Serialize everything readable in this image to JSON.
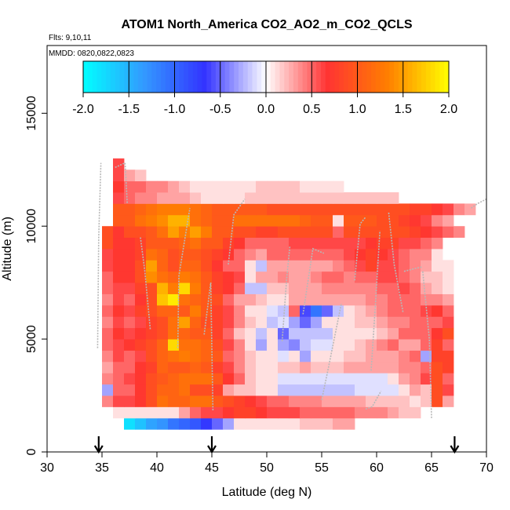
{
  "chart_data": {
    "type": "heatmap",
    "title": "ATOM1 North_America CO2_AO2_m_CO2_QCLS",
    "subtitle_flights": "Flts: 9,10,11",
    "subtitle_dates": "MMDD: 0820,0822,0823",
    "xlabel": "Latitude (deg N)",
    "ylabel": "Altitude (m)",
    "xlim": [
      30,
      70
    ],
    "ylim": [
      0,
      18000
    ],
    "xticks": [
      "30",
      "35",
      "40",
      "45",
      "50",
      "55",
      "60",
      "65",
      "70"
    ],
    "yticks": [
      "0",
      "5000",
      "10000",
      "15000"
    ],
    "colorbar": {
      "range": [
        -2.0,
        2.0
      ],
      "ticks": [
        "-2.0",
        "-1.5",
        "-1.0",
        "-0.5",
        "0.0",
        "0.5",
        "1.0",
        "1.5",
        "2.0"
      ],
      "colors": [
        "#00ffff",
        "#3399ff",
        "#3333ff",
        "#ffffff",
        "#ff3333",
        "#ff7f00",
        "#ffff00"
      ]
    },
    "arrows_latitude": [
      34.7,
      45.0,
      67.1
    ],
    "bin_width_lat": 1.0,
    "bin_height_alt": 500,
    "rows": [
      {
        "alt": 1250,
        "lat_start": 37,
        "values": [
          -1.8,
          -1.6,
          -1.4,
          -1.3,
          -1.1,
          -1.0,
          -0.9,
          -0.7,
          -0.5,
          -0.3,
          0.1,
          0.1,
          0.1,
          0.1,
          0.1,
          0.1,
          0.2,
          0.2,
          0.2,
          0.3,
          0.3
        ]
      },
      {
        "alt": 1750,
        "lat_start": 36,
        "values": [
          0.1,
          0.1,
          0.1,
          0.1,
          0.1,
          0.1,
          0.3,
          0.5,
          0.6,
          0.6,
          0.7,
          0.8,
          0.8,
          0.7,
          0.6,
          0.6,
          0.6,
          0.5,
          0.5,
          0.5,
          0.5,
          0.5,
          0.4,
          0.4,
          0.4,
          0.3,
          0.2,
          0.2
        ]
      },
      {
        "alt": 2250,
        "lat_start": 35,
        "values": [
          0.4,
          0.6,
          0.6,
          0.7,
          0.9,
          1.2,
          1.1,
          1.1,
          1.2,
          1.2,
          1.0,
          0.9,
          0.8,
          0.7,
          0.6,
          0.5,
          0.5,
          0.4,
          0.4,
          0.4,
          0.3,
          0.3,
          0.3,
          0.3,
          0.2,
          0.2,
          0.2,
          0.2,
          0.1,
          0.2,
          0.9,
          0.3
        ]
      },
      {
        "alt": 2750,
        "lat_start": 35,
        "values": [
          -0.3,
          0.5,
          0.5,
          0.7,
          0.9,
          1.1,
          1.1,
          1.2,
          0.9,
          0.9,
          0.8,
          0.3,
          0.2,
          0.2,
          0.1,
          0.1,
          -0.2,
          -0.2,
          -0.2,
          -0.2,
          -0.2,
          -0.2,
          -0.2,
          -0.1,
          -0.1,
          -0.1,
          -0.1,
          0.1,
          0.3,
          0.2,
          0.9,
          0.6
        ]
      },
      {
        "alt": 3250,
        "lat_start": 35,
        "values": [
          0.4,
          0.5,
          0.6,
          0.7,
          0.9,
          1.0,
          1.1,
          1.2,
          1.2,
          1.2,
          1.0,
          0.7,
          0.5,
          0.2,
          0.1,
          0.1,
          -0.1,
          -0.1,
          -0.1,
          -0.1,
          -0.1,
          -0.1,
          -0.1,
          -0.1,
          -0.1,
          -0.1,
          0.1,
          0.3,
          0.4,
          0.6,
          0.9,
          0.5
        ]
      },
      {
        "alt": 3750,
        "lat_start": 35,
        "values": [
          0.3,
          0.5,
          0.5,
          0.7,
          0.8,
          1.1,
          1.0,
          1.0,
          1.1,
          1.0,
          0.8,
          0.6,
          0.4,
          0.2,
          0.1,
          0.1,
          0.2,
          0.2,
          0.3,
          0.2,
          0.2,
          0.2,
          0.3,
          0.3,
          0.3,
          0.3,
          0.3,
          0.4,
          0.4,
          0.5,
          0.9,
          0.8
        ]
      },
      {
        "alt": 4250,
        "lat_start": 35,
        "values": [
          0.4,
          0.6,
          0.5,
          0.6,
          0.9,
          1.1,
          1.2,
          1.3,
          1.2,
          1.1,
          1.0,
          0.5,
          0.4,
          0.2,
          0.1,
          0.1,
          -0.1,
          0.1,
          -0.3,
          0.1,
          0.1,
          0.1,
          0.2,
          0.2,
          0.3,
          0.3,
          0.3,
          0.4,
          0.5,
          -0.3,
          0.8,
          0.8
        ]
      },
      {
        "alt": 4750,
        "lat_start": 35,
        "values": [
          0.5,
          0.6,
          0.7,
          0.8,
          0.9,
          1.1,
          1.8,
          1.2,
          1.2,
          1.1,
          0.9,
          0.6,
          0.4,
          0.1,
          -0.3,
          0.1,
          -0.3,
          -0.4,
          -0.2,
          -0.1,
          -0.1,
          0.1,
          0.1,
          0.2,
          0.3,
          0.4,
          0.5,
          0.3,
          0.3,
          0.5,
          0.8,
          0.5
        ]
      },
      {
        "alt": 5250,
        "lat_start": 35,
        "values": [
          0.5,
          0.7,
          0.6,
          0.7,
          0.8,
          0.9,
          1.2,
          1.1,
          1.0,
          1.0,
          0.8,
          0.5,
          0.2,
          0.1,
          -0.2,
          0.1,
          -0.5,
          -0.2,
          -0.2,
          -0.2,
          -0.2,
          0.1,
          0.1,
          0.1,
          0.1,
          0.2,
          0.3,
          0.5,
          0.5,
          0.5,
          0.7,
          0.9
        ]
      },
      {
        "alt": 5750,
        "lat_start": 35,
        "values": [
          0.4,
          0.6,
          0.5,
          0.6,
          0.8,
          0.9,
          1.2,
          1.5,
          1.1,
          0.9,
          0.8,
          0.6,
          0.4,
          0.2,
          0.1,
          -0.2,
          -0.1,
          -0.3,
          -0.5,
          -0.3,
          0.1,
          0.1,
          0.1,
          0.2,
          0.2,
          0.3,
          0.4,
          0.4,
          0.5,
          0.5,
          0.5,
          0.6
        ]
      },
      {
        "alt": 6250,
        "lat_start": 35,
        "values": [
          0.5,
          0.7,
          0.6,
          0.8,
          0.9,
          1.1,
          1.1,
          1.0,
          1.3,
          1.0,
          0.8,
          0.6,
          0.4,
          0.1,
          0.1,
          -0.1,
          -0.2,
          0.5,
          -0.6,
          -1.1,
          -0.5,
          -0.2,
          0.1,
          0.2,
          0.3,
          0.4,
          0.5,
          0.5,
          0.5,
          0.6,
          0.7,
          0.5
        ]
      },
      {
        "alt": 6750,
        "lat_start": 35,
        "values": [
          0.4,
          0.6,
          0.5,
          0.7,
          0.9,
          1.7,
          1.9,
          1.2,
          1.1,
          1.0,
          0.9,
          0.5,
          0.3,
          0.3,
          0.2,
          0.1,
          0.1,
          0.3,
          0.3,
          0.3,
          0.3,
          0.3,
          0.3,
          0.3,
          0.4,
          0.4,
          0.5,
          0.5,
          0.5,
          0.4,
          0.4,
          0.3
        ]
      },
      {
        "alt": 7250,
        "lat_start": 35,
        "values": [
          0.5,
          0.6,
          0.6,
          0.8,
          0.9,
          1.6,
          1.3,
          1.8,
          1.3,
          1.0,
          0.8,
          0.7,
          0.5,
          -0.2,
          -0.2,
          0.2,
          0.2,
          0.3,
          0.3,
          0.3,
          0.4,
          0.4,
          0.4,
          0.4,
          0.4,
          0.5,
          0.5,
          0.6,
          0.5,
          0.3,
          0.2,
          0.1
        ]
      },
      {
        "alt": 7750,
        "lat_start": 35,
        "values": [
          0.5,
          0.7,
          0.7,
          0.9,
          1.4,
          1.2,
          1.1,
          1.3,
          1.2,
          1.0,
          0.8,
          0.7,
          0.6,
          0.1,
          0.3,
          0.3,
          0.4,
          0.3,
          0.3,
          0.4,
          0.5,
          0.5,
          0.4,
          0.5,
          0.5,
          0.6,
          0.6,
          0.5,
          0.4,
          0.2,
          0.2,
          0.1
        ]
      },
      {
        "alt": 8250,
        "lat_start": 35,
        "values": [
          0.6,
          0.7,
          0.7,
          0.9,
          1.5,
          1.1,
          0.9,
          1.1,
          1.1,
          0.9,
          0.7,
          0.5,
          0.5,
          0.1,
          -0.2,
          0.3,
          0.3,
          0.3,
          0.3,
          0.3,
          0.3,
          0.4,
          0.5,
          0.6,
          0.8,
          0.6,
          0.6,
          0.5,
          0.4,
          0.3,
          0.1,
          0.1
        ]
      },
      {
        "alt": 8750,
        "lat_start": 35,
        "values": [
          0.6,
          0.7,
          0.7,
          0.8,
          1.2,
          1.1,
          0.9,
          1.0,
          1.0,
          0.9,
          0.8,
          0.7,
          0.5,
          0.4,
          0.3,
          0.5,
          0.5,
          0.5,
          0.5,
          0.5,
          0.5,
          0.5,
          0.6,
          0.7,
          0.8,
          0.7,
          0.6,
          0.5,
          0.4,
          0.4,
          0.1
        ]
      },
      {
        "alt": 9250,
        "lat_start": 35,
        "values": [
          0.9,
          0.7,
          0.7,
          0.8,
          1.0,
          1.0,
          1.0,
          1.1,
          1.2,
          1.0,
          1.0,
          0.8,
          0.7,
          0.5,
          0.5,
          0.5,
          0.5,
          0.6,
          0.6,
          0.6,
          0.6,
          0.6,
          0.6,
          0.6,
          0.7,
          0.8,
          0.8,
          0.6,
          0.6,
          0.5,
          0.4
        ]
      },
      {
        "alt": 9750,
        "lat_start": 35,
        "values": [
          0.9,
          0.7,
          0.9,
          0.9,
          1.0,
          1.2,
          1.5,
          1.3,
          1.5,
          1.3,
          1.0,
          1.0,
          0.9,
          0.9,
          0.8,
          0.8,
          0.9,
          0.9,
          0.9,
          0.9,
          0.9,
          0.5,
          0.9,
          0.9,
          0.9,
          0.9,
          0.9,
          0.9,
          0.8,
          0.7,
          0.6,
          0.5,
          0.4
        ]
      },
      {
        "alt": 10250,
        "lat_start": 36,
        "values": [
          1.0,
          1.0,
          1.2,
          1.3,
          1.4,
          1.6,
          1.6,
          1.2,
          1.1,
          1.0,
          1.0,
          1.2,
          1.2,
          1.2,
          1.2,
          1.2,
          1.2,
          1.1,
          1.0,
          1.0,
          0.1,
          1.0,
          1.0,
          1.0,
          0.9,
          0.9,
          0.8,
          0.7,
          0.6,
          0.4,
          0.3
        ]
      },
      {
        "alt": 10750,
        "lat_start": 36,
        "values": [
          1.0,
          1.0,
          1.1,
          1.2,
          1.3,
          1.3,
          1.3,
          1.2,
          1.1,
          1.0,
          1.0,
          1.0,
          1.0,
          1.0,
          0.9,
          0.9,
          0.9,
          0.9,
          0.9,
          0.9,
          0.9,
          0.9,
          0.9,
          0.9,
          0.9,
          0.9,
          0.9,
          0.8,
          0.8,
          0.7,
          0.6,
          0.4,
          0.3
        ]
      },
      {
        "alt": 11250,
        "lat_start": 36,
        "values": [
          0.6,
          0.5,
          0.4,
          0.4,
          0.3,
          0.3,
          0.3,
          0.2,
          0.1,
          0.1,
          0.1,
          0.1,
          0.2,
          0.2,
          0.2,
          0.2,
          0.2,
          0.2,
          0.2,
          0.2,
          0.2,
          0.2,
          0.2,
          0.2,
          0.2,
          0.2
        ]
      },
      {
        "alt": 11750,
        "lat_start": 36,
        "values": [
          0.7,
          0.5,
          0.5,
          0.4,
          0.4,
          0.3,
          0.2,
          0.1,
          0.1,
          0.1,
          0.1,
          0.1,
          0.1,
          0.2,
          0.2,
          0.2,
          0.2,
          0.1,
          0.1,
          0.1,
          0.1
        ]
      },
      {
        "alt": 12250,
        "lat_start": 36,
        "values": [
          0.6,
          0.3,
          0.2
        ]
      },
      {
        "alt": 12750,
        "lat_start": 36,
        "values": [
          0.6
        ]
      }
    ]
  }
}
